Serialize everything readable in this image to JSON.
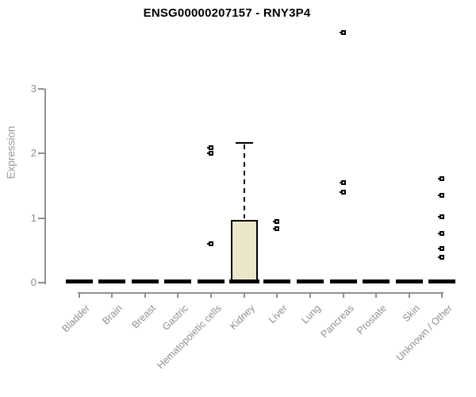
{
  "chart_data": {
    "type": "boxplot",
    "title": "ENSG00000207157 - RNY3P4",
    "ylabel": "Expression",
    "xlabel": "",
    "ylim": [
      0,
      3
    ],
    "yticks": [
      0,
      1,
      2,
      3
    ],
    "grid": "off",
    "legend": "none",
    "categories": [
      "Bladder",
      "Brain",
      "Breast",
      "Gastric",
      "Hematopoietic cells",
      "Kidney",
      "Liver",
      "Lung",
      "Pancreas",
      "Prostate",
      "Skin",
      "Unknown / Other"
    ],
    "boxes": [
      {
        "category": "Bladder",
        "median": 0,
        "q1": 0,
        "q3": 0,
        "whisker_low": 0,
        "whisker_high": 0,
        "outliers": []
      },
      {
        "category": "Brain",
        "median": 0,
        "q1": 0,
        "q3": 0,
        "whisker_low": 0,
        "whisker_high": 0,
        "outliers": []
      },
      {
        "category": "Breast",
        "median": 0,
        "q1": 0,
        "q3": 0,
        "whisker_low": 0,
        "whisker_high": 0,
        "outliers": []
      },
      {
        "category": "Gastric",
        "median": 0,
        "q1": 0,
        "q3": 0,
        "whisker_low": 0,
        "whisker_high": 0,
        "outliers": []
      },
      {
        "category": "Hematopoietic cells",
        "median": 0,
        "q1": 0,
        "q3": 0,
        "whisker_low": 0,
        "whisker_high": 0,
        "outliers": [
          2.09,
          2.01,
          0.6
        ]
      },
      {
        "category": "Kidney",
        "median": 0,
        "q1": 0,
        "q3": 0.97,
        "whisker_low": 0,
        "whisker_high": 2.16,
        "outliers": []
      },
      {
        "category": "Liver",
        "median": 0,
        "q1": 0,
        "q3": 0,
        "whisker_low": 0,
        "whisker_high": 0,
        "outliers": [
          0.95,
          0.84
        ]
      },
      {
        "category": "Lung",
        "median": 0,
        "q1": 0,
        "q3": 0,
        "whisker_low": 0,
        "whisker_high": 0,
        "outliers": []
      },
      {
        "category": "Pancreas",
        "median": 0,
        "q1": 0,
        "q3": 0,
        "whisker_low": 0,
        "whisker_high": 0,
        "outliers": [
          3.87,
          1.55,
          1.4
        ]
      },
      {
        "category": "Prostate",
        "median": 0,
        "q1": 0,
        "q3": 0,
        "whisker_low": 0,
        "whisker_high": 0,
        "outliers": []
      },
      {
        "category": "Skin",
        "median": 0,
        "q1": 0,
        "q3": 0,
        "whisker_low": 0,
        "whisker_high": 0,
        "outliers": []
      },
      {
        "category": "Unknown / Other",
        "median": 0,
        "q1": 0,
        "q3": 0,
        "whisker_low": 0,
        "whisker_high": 0,
        "outliers": [
          1.61,
          1.35,
          1.02,
          0.76,
          0.53,
          0.39
        ]
      }
    ],
    "colors": {
      "box_fill": "#ece6c8",
      "box_border": "#000000",
      "median": "#000000",
      "outlier": "#000000",
      "axis": "#8f8f8f",
      "tick_label": "#8f8f8f",
      "axis_label": "#9a9a9a",
      "title": "#000000",
      "background": "#ffffff"
    }
  }
}
